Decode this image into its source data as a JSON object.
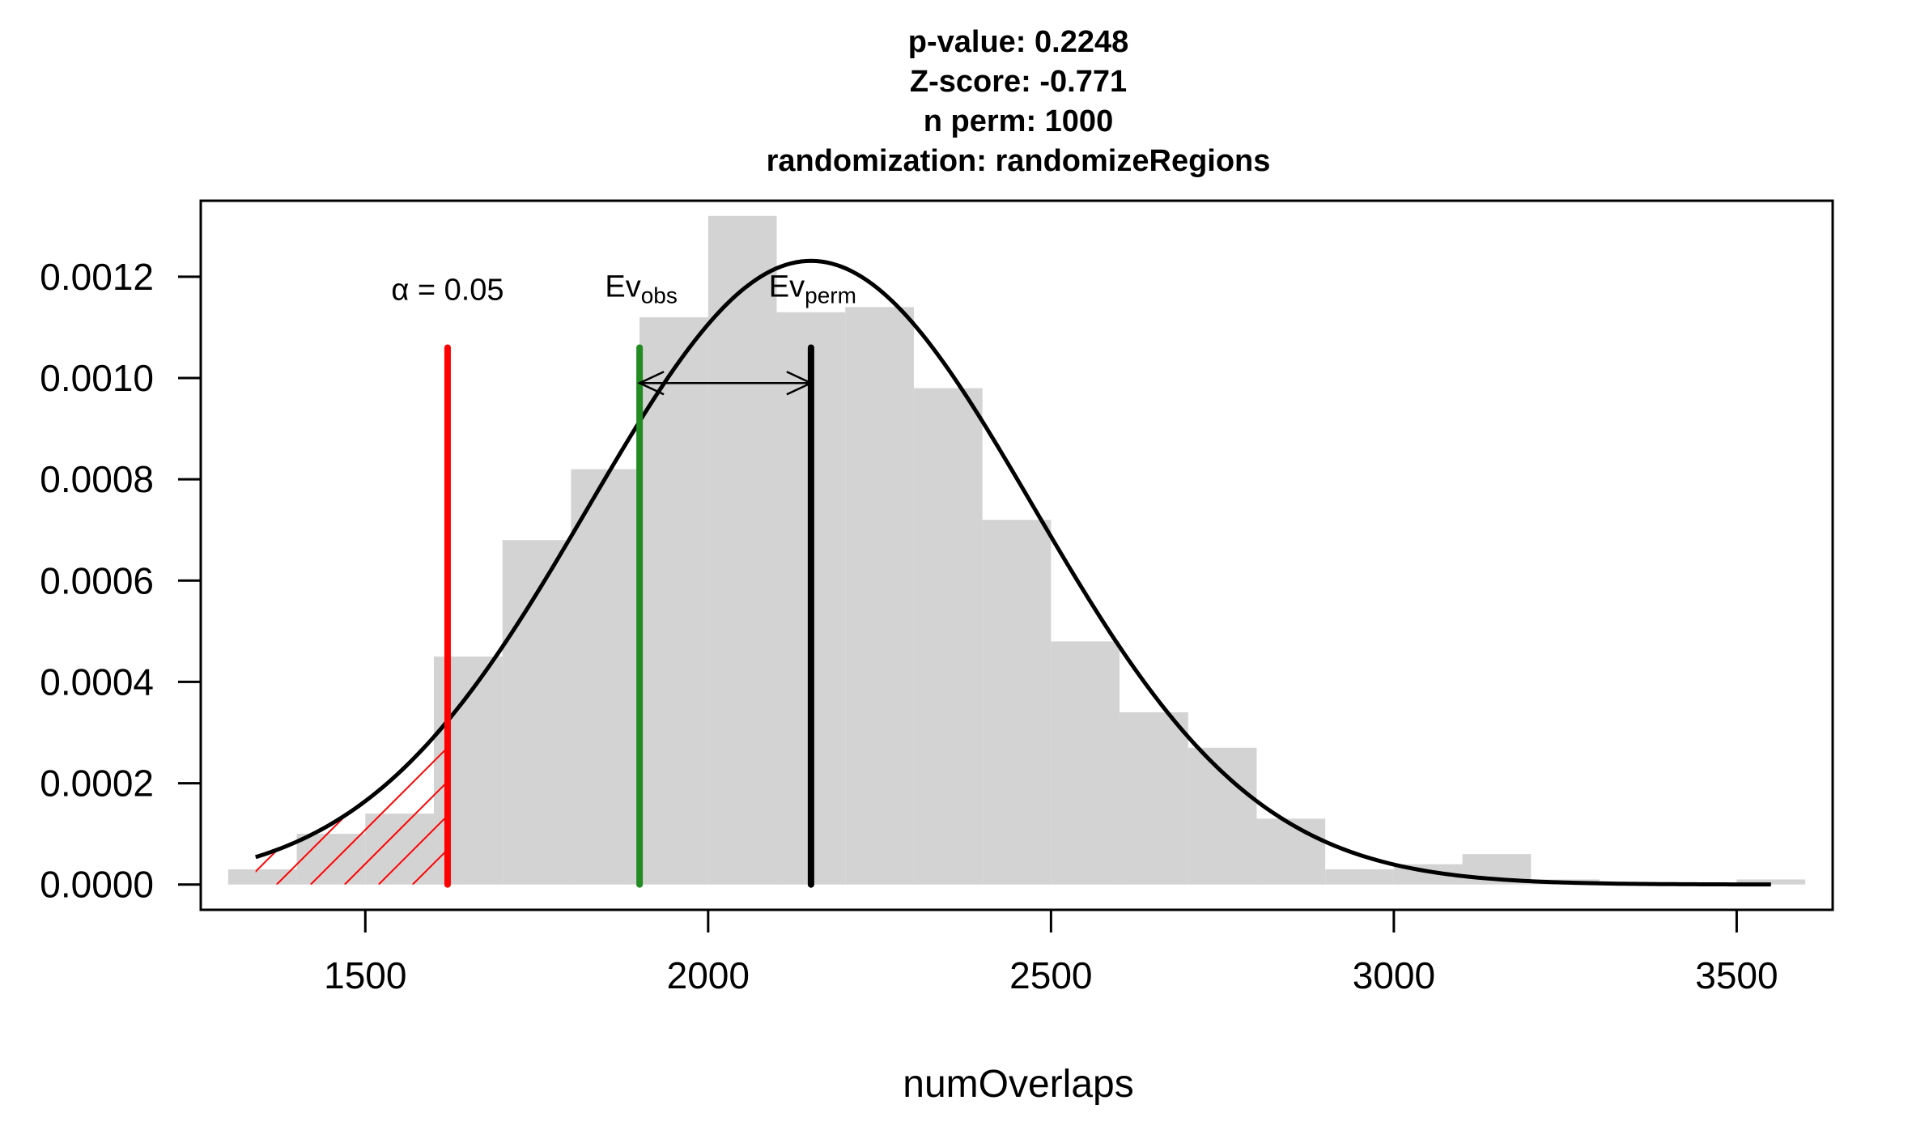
{
  "chart_data": {
    "type": "bar",
    "title_lines": [
      "p-value:  0.2248",
      "Z-score:  -0.771",
      "n perm:  1000",
      "randomization:  randomizeRegions"
    ],
    "xlabel": "numOverlaps",
    "ylabel": "",
    "xlim": [
      1260,
      3640
    ],
    "ylim": [
      -5e-05,
      0.00135
    ],
    "x_ticks": [
      1500,
      2000,
      2500,
      3000,
      3500
    ],
    "x_tick_labels": [
      "1500",
      "2000",
      "2500",
      "3000",
      "3500"
    ],
    "y_ticks": [
      0,
      0.0002,
      0.0004,
      0.0006,
      0.0008,
      0.001,
      0.0012
    ],
    "y_tick_labels": [
      "0.0000",
      "0.0002",
      "0.0004",
      "0.0006",
      "0.0008",
      "0.0010",
      "0.0012"
    ],
    "histogram": {
      "bin_edges": [
        1300,
        1400,
        1500,
        1600,
        1700,
        1800,
        1900,
        2000,
        2100,
        2200,
        2300,
        2400,
        2500,
        2600,
        2700,
        2800,
        2900,
        3000,
        3100,
        3200,
        3300,
        3400,
        3500,
        3600
      ],
      "density": [
        3e-05,
        0.0001,
        0.00014,
        0.00045,
        0.00068,
        0.00082,
        0.00112,
        0.00132,
        0.00113,
        0.00114,
        0.00098,
        0.00072,
        0.00048,
        0.00034,
        0.00027,
        0.00013,
        3e-05,
        4e-05,
        6e-05,
        1e-05,
        0,
        0,
        1e-05
      ],
      "color": "#d3d3d3"
    },
    "normal_curve": {
      "mean": 2150,
      "sd": 324,
      "from": 1340,
      "to": 3550,
      "color": "#000000"
    },
    "lines": [
      {
        "name": "alpha",
        "x": 1620,
        "ymax": 0.00106,
        "color": "#ff0000"
      },
      {
        "name": "Ev_obs",
        "x": 1900,
        "ymax": 0.00106,
        "color": "#228b22"
      },
      {
        "name": "Ev_perm",
        "x": 2150,
        "ymax": 0.00106,
        "color": "#000000"
      }
    ],
    "annotations": {
      "alpha_label": "α = 0.05",
      "ev_obs_main": "Ev",
      "ev_obs_sub": "obs",
      "ev_perm_main": "Ev",
      "ev_perm_sub": "perm"
    },
    "arrow": {
      "from": 1900,
      "to": 2150,
      "y": 0.00099
    },
    "rejection_region": {
      "from": 1340,
      "to": 1620,
      "color": "#ff0000"
    },
    "grid": false,
    "legend": "none"
  }
}
